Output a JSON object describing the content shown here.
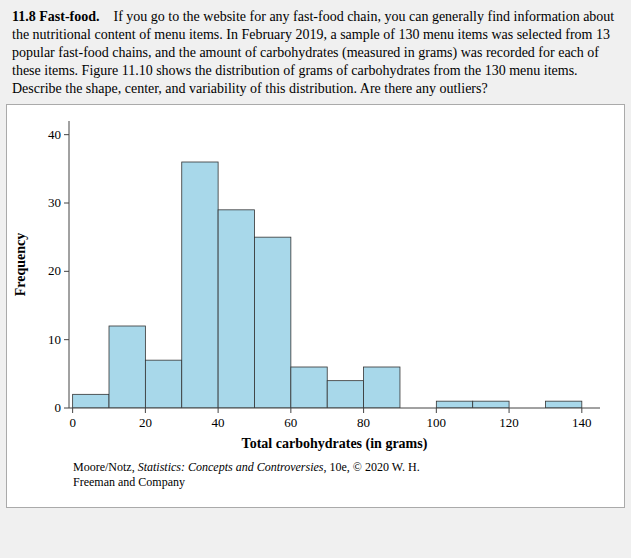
{
  "chart_data": {
    "type": "histogram",
    "title": "11.8 Fast-food.",
    "subtitle": "If you go to the website for any fast-food chain, you can generally find information about the nutritional content of menu items. In February 2019, a sample of 130 menu items was selected from 13 popular fast-food chains, and the amount of carbohydrates (measured in grams) was recorded for each of these items. Figure 11.10 shows the distribution of grams of carbohydrates from the 130 menu items. Describe the shape, center, and variability of this distribution. Are there any outliers?",
    "xlabel": "Total carbohydrates (in grams)",
    "ylabel": "Frequency",
    "bins": [
      0,
      10,
      20,
      30,
      40,
      50,
      60,
      70,
      80,
      90,
      100,
      110,
      120,
      130,
      140
    ],
    "values": [
      2,
      12,
      7,
      36,
      29,
      25,
      6,
      4,
      6,
      0,
      1,
      1,
      0,
      1
    ],
    "color": "#A8D8EA",
    "xlim": [
      -1,
      145
    ],
    "ylim": [
      0,
      42
    ],
    "xticks": [
      0,
      20,
      40,
      60,
      80,
      100,
      120,
      140
    ],
    "yticks": [
      0,
      10,
      20,
      30,
      40
    ],
    "annotations": [
      "Moore/Notz, ",
      "Statistics: Concepts and Controversies",
      ", 10e, © 2020 W. H.",
      "Freeman and Company"
    ]
  }
}
